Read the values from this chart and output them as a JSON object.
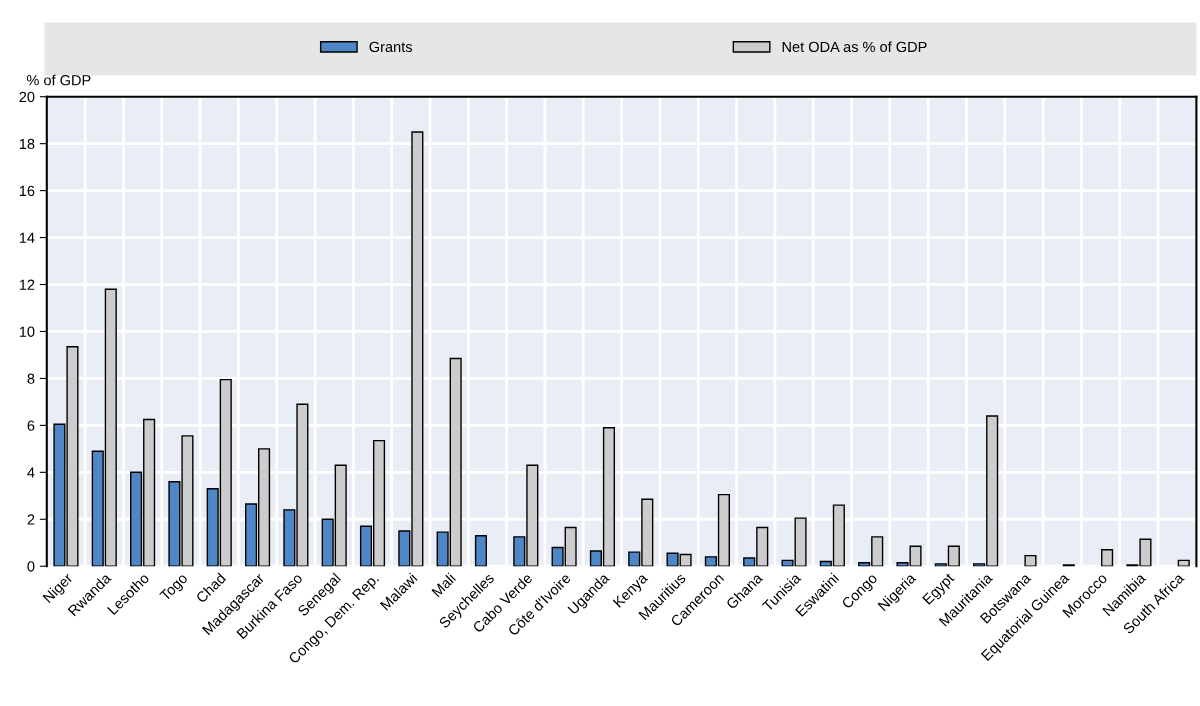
{
  "chart_data": {
    "type": "bar",
    "ylabel": "% of GDP",
    "categories": [
      "Niger",
      "Rwanda",
      "Lesotho",
      "Togo",
      "Chad",
      "Madagascar",
      "Burkina Faso",
      "Senegal",
      "Congo, Dem. Rep.",
      "Malawi",
      "Mali",
      "Seychelles",
      "Cabo Verde",
      "Côte d'Ivoire",
      "Uganda",
      "Kenya",
      "Mauritius",
      "Cameroon",
      "Ghana",
      "Tunisia",
      "Eswatini",
      "Congo",
      "Nigeria",
      "Egypt",
      "Mauritania",
      "Botswana",
      "Equatorial Guinea",
      "Morocco",
      "Namibia",
      "South Africa"
    ],
    "series": [
      {
        "name": "Grants",
        "color": "#4e86c6",
        "values": [
          6.05,
          4.9,
          4.0,
          3.6,
          3.3,
          2.65,
          2.4,
          2.0,
          1.7,
          1.5,
          1.45,
          1.3,
          1.25,
          0.8,
          0.65,
          0.6,
          0.55,
          0.4,
          0.35,
          0.25,
          0.2,
          0.15,
          0.15,
          0.1,
          0.1,
          null,
          null,
          null,
          0.05,
          null
        ]
      },
      {
        "name": "Net ODA as % of GDP",
        "color": "#cccccc",
        "values": [
          9.35,
          11.8,
          6.25,
          5.55,
          7.95,
          5.0,
          6.9,
          4.3,
          5.35,
          18.5,
          8.85,
          null,
          4.3,
          1.65,
          5.9,
          2.85,
          0.5,
          3.05,
          1.65,
          2.05,
          2.6,
          1.25,
          0.85,
          0.85,
          6.4,
          0.45,
          0.05,
          0.7,
          1.15,
          0.25
        ]
      }
    ],
    "ylim": [
      0,
      20
    ],
    "yticks": [
      0,
      2,
      4,
      6,
      8,
      10,
      12,
      14,
      16,
      18,
      20
    ],
    "grid": true,
    "legend": "top"
  }
}
